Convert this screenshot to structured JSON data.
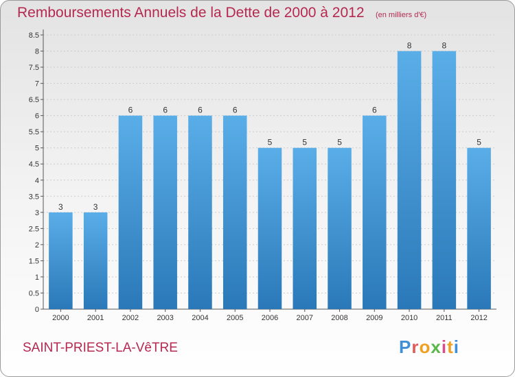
{
  "header": {
    "title": "Remboursements Annuels de la Dette de 2000 à 2012",
    "subtitle": "(en milliers d'€)"
  },
  "footer": {
    "commune": "SAINT-PRIEST-LA-VêTRE",
    "logo_text": "Proxiti",
    "logo_colors": [
      "#3f8fd6",
      "#e05a5a",
      "#f0a020",
      "#58b84a",
      "#d64d8c",
      "#f0a020",
      "#3f8fd6"
    ]
  },
  "colors": {
    "bar_top": "#5aaee8",
    "bar_bottom": "#2a78b8",
    "title": "#b5284f",
    "grid": "#cccccc"
  },
  "chart_data": {
    "type": "bar",
    "categories": [
      "2000",
      "2001",
      "2002",
      "2003",
      "2004",
      "2005",
      "2006",
      "2007",
      "2008",
      "2009",
      "2010",
      "2011",
      "2012"
    ],
    "values": [
      3,
      3,
      6,
      6,
      6,
      6,
      5,
      5,
      5,
      6,
      8,
      8,
      5
    ],
    "y_ticks": [
      "0",
      "0.5",
      "1",
      "1.5",
      "2",
      "2.5",
      "3",
      "3.5",
      "4",
      "4.5",
      "5",
      "5.5",
      "6",
      "6.5",
      "7",
      "7.5",
      "8",
      "8.5"
    ],
    "ylim": [
      0,
      8.5
    ],
    "grid": true,
    "title": "Remboursements Annuels de la Dette de 2000 à 2012",
    "xlabel": "",
    "ylabel": ""
  }
}
